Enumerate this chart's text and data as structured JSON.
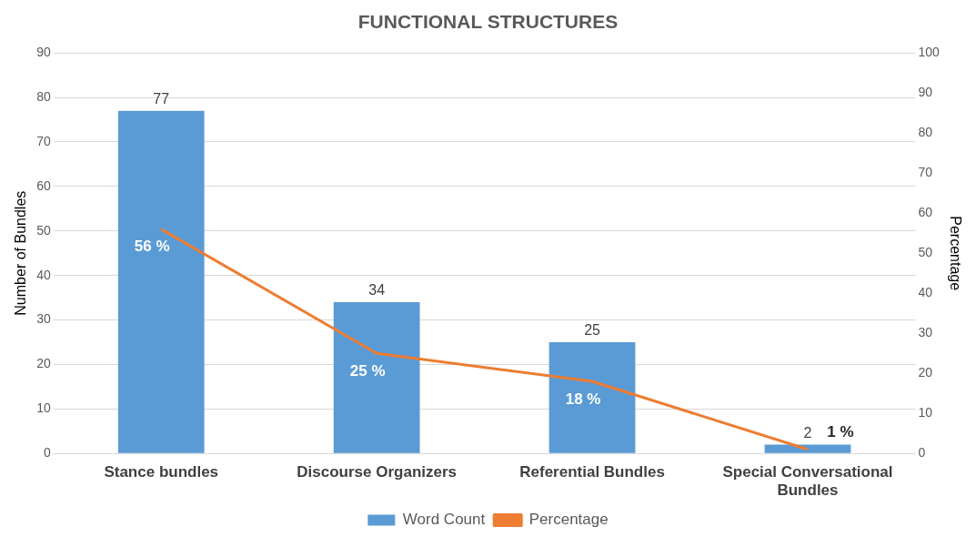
{
  "chart_data": {
    "type": "bar",
    "title": "FUNCTIONAL STRUCTURES",
    "ylabel": "Number of Bundles",
    "y2label": "Percentage",
    "categories": [
      "Stance bundles",
      "Discourse Organizers",
      "Referential Bundles",
      "Special Conversational Bundles"
    ],
    "series": [
      {
        "name": "Word Count",
        "color": "#5b9bd5",
        "values": [
          77,
          34,
          25,
          2
        ],
        "value_labels": [
          "77",
          "34",
          "25",
          "2"
        ]
      },
      {
        "name": "Percentage",
        "type": "line",
        "axis": "y2",
        "color": "#ed7d31",
        "values": [
          56,
          25,
          18,
          1
        ],
        "value_labels": [
          "56 %",
          "25 %",
          "18 %",
          "1 %"
        ]
      }
    ],
    "ylim": [
      0,
      90
    ],
    "yticks": [
      0,
      10,
      20,
      30,
      40,
      50,
      60,
      70,
      80,
      90
    ],
    "y2lim": [
      0,
      100
    ],
    "y2ticks": [
      0,
      10,
      20,
      30,
      40,
      50,
      60,
      70,
      80,
      90,
      100
    ],
    "grid": "y",
    "legend": "bottom",
    "marker": "none"
  }
}
